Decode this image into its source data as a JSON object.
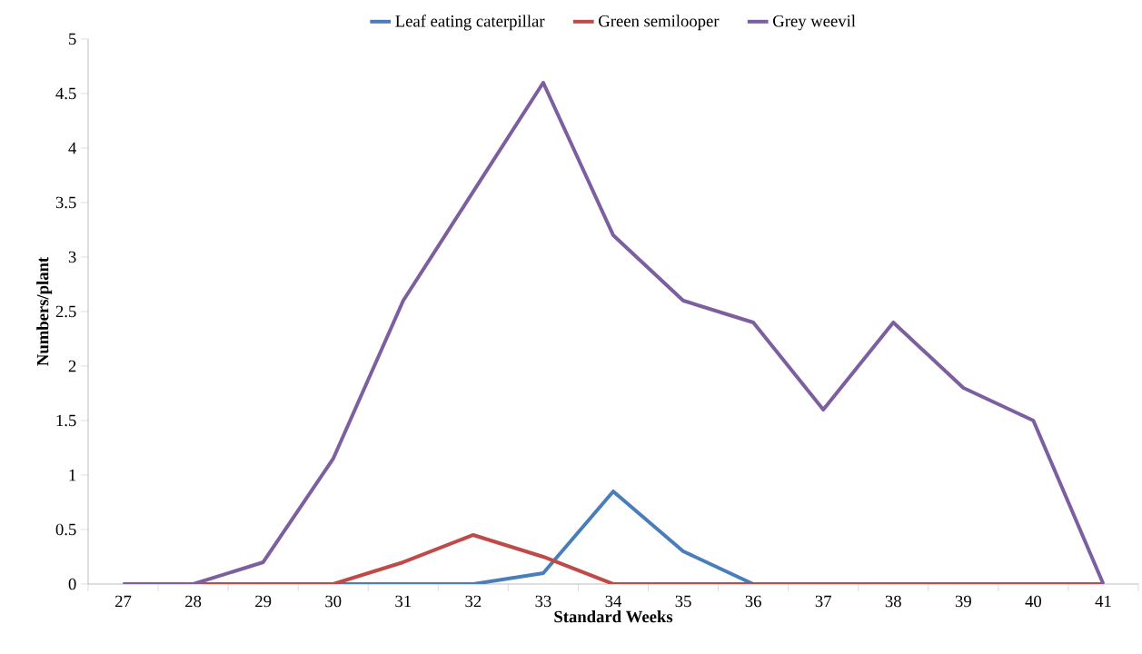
{
  "chart_data": {
    "type": "line",
    "xlabel": "Standard Weeks",
    "ylabel": "Numbers/plant",
    "categories": [
      "27",
      "28",
      "29",
      "30",
      "31",
      "32",
      "33",
      "34",
      "35",
      "36",
      "37",
      "38",
      "39",
      "40",
      "41"
    ],
    "series": [
      {
        "name": "Leaf eating caterpillar",
        "color": "#4a7ebb",
        "values": [
          null,
          null,
          null,
          0,
          0,
          0,
          0.1,
          0.85,
          0.3,
          0,
          0,
          0,
          0,
          0,
          0
        ]
      },
      {
        "name": "Green semilooper",
        "color": "#be4b48",
        "values": [
          0,
          0,
          0,
          0,
          0.2,
          0.45,
          0.25,
          0,
          0,
          0,
          0,
          0,
          0,
          0,
          0
        ]
      },
      {
        "name": "Grey weevil",
        "color": "#7d5fa0",
        "values": [
          0,
          0,
          0.2,
          1.15,
          2.6,
          3.6,
          4.6,
          3.2,
          2.6,
          2.4,
          1.6,
          2.4,
          1.8,
          1.5,
          0
        ]
      }
    ],
    "ylim": [
      0,
      5
    ],
    "yticks": [
      0,
      0.5,
      1,
      1.5,
      2,
      2.5,
      3,
      3.5,
      4,
      4.5,
      5
    ],
    "grid": false,
    "legend": "top",
    "marker": "none",
    "line_style": "solid"
  }
}
